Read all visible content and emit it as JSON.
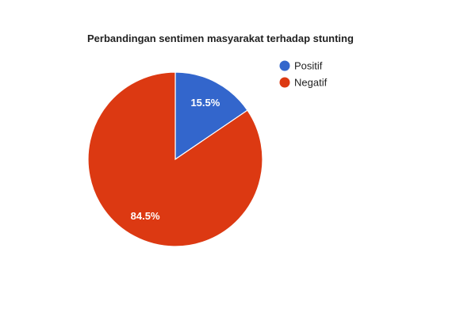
{
  "chart_data": {
    "type": "pie",
    "title": "Perbandingan sentimen masyarakat terhadap stunting",
    "legend_position": "right",
    "slices": [
      {
        "name": "Positif",
        "value": 15.5,
        "label": "15.5%",
        "color": "#3366cc"
      },
      {
        "name": "Negatif",
        "value": 84.5,
        "label": "84.5%",
        "color": "#dc3912"
      }
    ]
  }
}
